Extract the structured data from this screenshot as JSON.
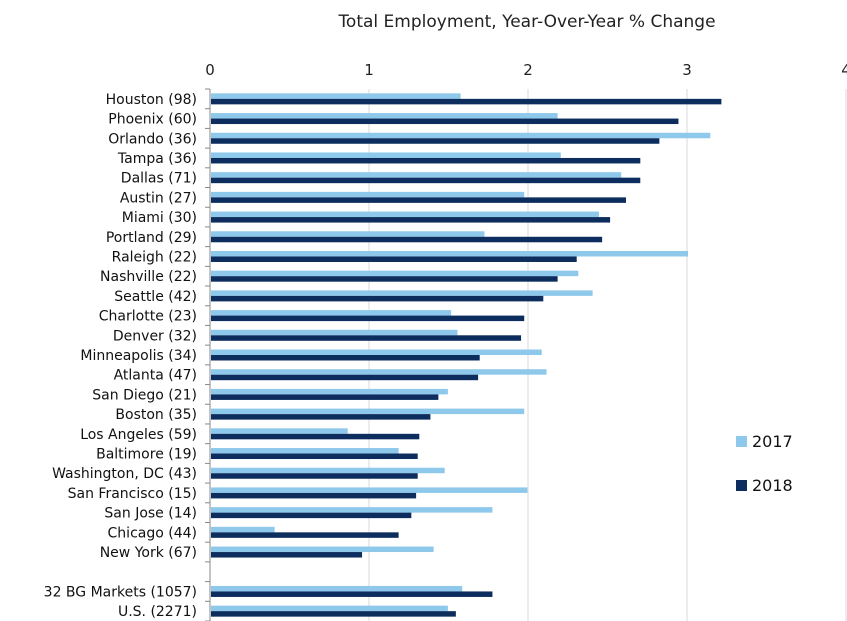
{
  "chart_data": {
    "type": "bar",
    "orientation": "horizontal",
    "title": "Total Employment, Year-Over-Year % Change",
    "xlabel": "",
    "ylabel": "",
    "xlim": [
      0,
      4
    ],
    "xticks": [
      "0",
      "1",
      "2",
      "3",
      "4"
    ],
    "xaxis_position": "top",
    "grid": true,
    "legend_position": "right",
    "categories": [
      "Houston (98)",
      "Phoenix (60)",
      "Orlando (36)",
      "Tampa (36)",
      "Dallas (71)",
      "Austin (27)",
      "Miami (30)",
      "Portland (29)",
      "Raleigh (22)",
      "Nashville (22)",
      "Seattle (42)",
      "Charlotte (23)",
      "Denver (32)",
      "Minneapolis (34)",
      "Atlanta (47)",
      "San Diego (21)",
      "Boston (35)",
      "Los Angeles (59)",
      "Baltimore (19)",
      "Washington, DC (43)",
      "San Francisco (15)",
      "San Jose (14)",
      "Chicago (44)",
      "New York (67)",
      "",
      "32 BG Markets (1057)",
      "U.S. (2271)"
    ],
    "series": [
      {
        "name": "2017",
        "color": "#8ec9ec",
        "values": [
          1.57,
          2.18,
          3.14,
          2.2,
          2.58,
          1.97,
          2.44,
          1.72,
          3.0,
          2.31,
          2.4,
          1.51,
          1.55,
          2.08,
          2.11,
          1.49,
          1.97,
          0.86,
          1.18,
          1.47,
          1.99,
          1.77,
          0.4,
          1.4,
          null,
          1.58,
          1.49
        ]
      },
      {
        "name": "2018",
        "color": "#0d2d5e",
        "values": [
          3.21,
          2.94,
          2.82,
          2.7,
          2.7,
          2.61,
          2.51,
          2.46,
          2.3,
          2.18,
          2.09,
          1.97,
          1.95,
          1.69,
          1.68,
          1.43,
          1.38,
          1.31,
          1.3,
          1.3,
          1.29,
          1.26,
          1.18,
          0.95,
          null,
          1.77,
          1.54
        ]
      }
    ]
  }
}
